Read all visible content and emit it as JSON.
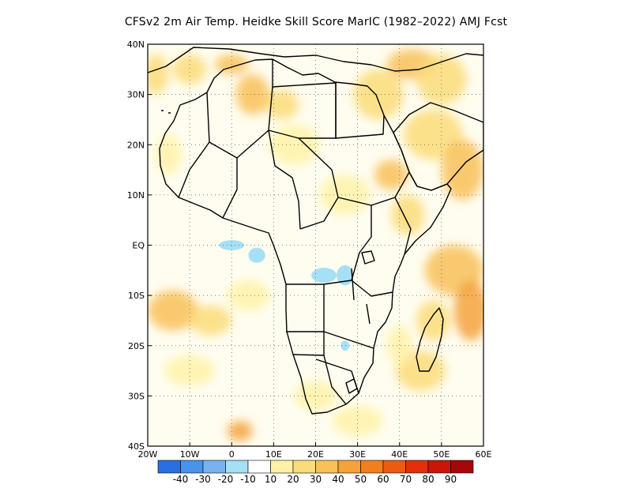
{
  "title": "CFSv2  2m Air Temp. Heidke Skill Score MarIC (1982–2022) AMJ Fcst",
  "map": {
    "projection": "lat-lon",
    "lon_range": [
      -20,
      60
    ],
    "lat_range": [
      -40,
      40
    ],
    "grid": "dotted",
    "x_ticks": [
      {
        "lon": -20,
        "label": "20W"
      },
      {
        "lon": -10,
        "label": "10W"
      },
      {
        "lon": 0,
        "label": "0"
      },
      {
        "lon": 10,
        "label": "10E"
      },
      {
        "lon": 20,
        "label": "20E"
      },
      {
        "lon": 30,
        "label": "30E"
      },
      {
        "lon": 40,
        "label": "40E"
      },
      {
        "lon": 50,
        "label": "50E"
      },
      {
        "lon": 60,
        "label": "60E"
      }
    ],
    "y_ticks": [
      {
        "lat": 40,
        "label": "40N"
      },
      {
        "lat": 30,
        "label": "30N"
      },
      {
        "lat": 20,
        "label": "20N"
      },
      {
        "lat": 10,
        "label": "10N"
      },
      {
        "lat": 0,
        "label": "EQ"
      },
      {
        "lat": -10,
        "label": "10S"
      },
      {
        "lat": -20,
        "label": "20S"
      },
      {
        "lat": -30,
        "label": "30S"
      },
      {
        "lat": -40,
        "label": "40S"
      }
    ]
  },
  "colorbar": {
    "colors": [
      "#2a6fe0",
      "#4a93ea",
      "#78b3f0",
      "#a6e0f5",
      "#ffffff",
      "#fff2a8",
      "#fbdc7a",
      "#f8c15a",
      "#f5a23c",
      "#f0801e",
      "#ec5a14",
      "#e3300c",
      "#c91609",
      "#a50808"
    ],
    "labels": [
      "-40",
      "-30",
      "-20",
      "-10",
      "10",
      "20",
      "30",
      "40",
      "50",
      "60",
      "70",
      "80",
      "90"
    ]
  },
  "skill_regions": [
    {
      "lon": -18,
      "lat": 34,
      "rx": 3,
      "ry": 4,
      "level": 2
    },
    {
      "lon": -10,
      "lat": 35,
      "rx": 4,
      "ry": 3,
      "level": 2
    },
    {
      "lon": 5,
      "lat": 30,
      "rx": 4,
      "ry": 4,
      "level": 3
    },
    {
      "lon": 12,
      "lat": 28,
      "rx": 4,
      "ry": 3,
      "level": 2
    },
    {
      "lon": 35,
      "lat": 30,
      "rx": 6,
      "ry": 5,
      "level": 2
    },
    {
      "lon": 43,
      "lat": 36,
      "rx": 6,
      "ry": 3,
      "level": 3
    },
    {
      "lon": 50,
      "lat": 33,
      "rx": 6,
      "ry": 5,
      "level": 2
    },
    {
      "lon": 48,
      "lat": 22,
      "rx": 7,
      "ry": 5,
      "level": 2
    },
    {
      "lon": 55,
      "lat": 15,
      "rx": 5,
      "ry": 6,
      "level": 3
    },
    {
      "lon": 38,
      "lat": 14,
      "rx": 4,
      "ry": 3,
      "level": 3
    },
    {
      "lon": 27,
      "lat": 10,
      "rx": 6,
      "ry": 4,
      "level": 1
    },
    {
      "lon": 42,
      "lat": 6,
      "rx": 4,
      "ry": 4,
      "level": 2
    },
    {
      "lon": 53,
      "lat": -5,
      "rx": 7,
      "ry": 5,
      "level": 3
    },
    {
      "lon": 57,
      "lat": -13,
      "rx": 4,
      "ry": 6,
      "level": 4
    },
    {
      "lon": 48,
      "lat": -15,
      "rx": 4,
      "ry": 4,
      "level": 2
    },
    {
      "lon": 45,
      "lat": -25,
      "rx": 6,
      "ry": 4,
      "level": 2
    },
    {
      "lon": -14,
      "lat": -13,
      "rx": 6,
      "ry": 4,
      "level": 3
    },
    {
      "lon": -5,
      "lat": -15,
      "rx": 5,
      "ry": 3,
      "level": 2
    },
    {
      "lon": 4,
      "lat": -10,
      "rx": 5,
      "ry": 3,
      "level": 1
    },
    {
      "lon": -10,
      "lat": -25,
      "rx": 6,
      "ry": 3,
      "level": 1
    },
    {
      "lon": 2,
      "lat": -37,
      "rx": 3,
      "ry": 2,
      "level": 4
    },
    {
      "lon": 20,
      "lat": -30,
      "rx": 5,
      "ry": 3,
      "level": 1
    },
    {
      "lon": 30,
      "lat": -35,
      "rx": 6,
      "ry": 3,
      "level": 1
    },
    {
      "lon": 40,
      "lat": -20,
      "rx": 3,
      "ry": 4,
      "level": 1
    },
    {
      "lon": 15,
      "lat": 20,
      "rx": 6,
      "ry": 4,
      "level": 1
    },
    {
      "lon": -15,
      "lat": 18,
      "rx": 3,
      "ry": 4,
      "level": 1
    },
    {
      "lon": 0,
      "lat": 36,
      "rx": 4,
      "ry": 2,
      "level": 3
    }
  ],
  "negative_regions": [
    {
      "lon": 0,
      "lat": 0,
      "rx": 3,
      "ry": 1
    },
    {
      "lon": 6,
      "lat": -2,
      "rx": 2,
      "ry": 1.5
    },
    {
      "lon": 22,
      "lat": -6,
      "rx": 3,
      "ry": 1.5
    },
    {
      "lon": 27,
      "lat": -6,
      "rx": 2,
      "ry": 2
    },
    {
      "lon": 27,
      "lat": -20,
      "rx": 1,
      "ry": 1
    }
  ]
}
